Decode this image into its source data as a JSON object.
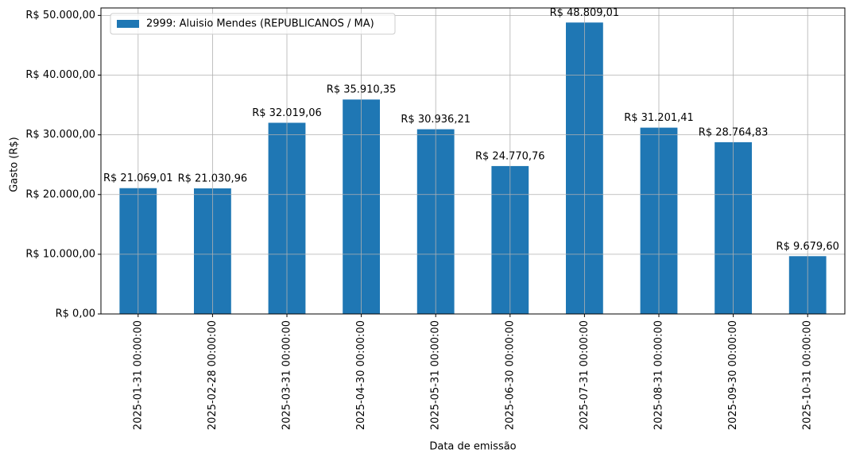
{
  "chart_data": {
    "type": "bar",
    "xlabel": "Data de emissão",
    "ylabel": "Gasto (R$)",
    "categories": [
      "2025-01-31 00:00:00",
      "2025-02-28 00:00:00",
      "2025-03-31 00:00:00",
      "2025-04-30 00:00:00",
      "2025-05-31 00:00:00",
      "2025-06-30 00:00:00",
      "2025-07-31 00:00:00",
      "2025-08-31 00:00:00",
      "2025-09-30 00:00:00",
      "2025-10-31 00:00:00"
    ],
    "series": [
      {
        "name": "2999: Aluisio Mendes (REPUBLICANOS / MA)",
        "color": "#1f77b4",
        "values": [
          21069.01,
          21030.96,
          32019.06,
          35910.35,
          30936.21,
          24770.76,
          48809.01,
          31201.41,
          28764.83,
          9679.6
        ],
        "value_labels": [
          "R$ 21.069,01",
          "R$ 21.030,96",
          "R$ 32.019,06",
          "R$ 35.910,35",
          "R$ 30.936,21",
          "R$ 24.770,76",
          "R$ 48.809,01",
          "R$ 31.201,41",
          "R$ 28.764,83",
          "R$ 9.679,60"
        ]
      }
    ],
    "ylim": [
      0,
      51249.46
    ],
    "yticks": [
      {
        "value": 0,
        "label": "R$ 0,00"
      },
      {
        "value": 10000,
        "label": "R$ 10.000,00"
      },
      {
        "value": 20000,
        "label": "R$ 20.000,00"
      },
      {
        "value": 30000,
        "label": "R$ 30.000,00"
      },
      {
        "value": 40000,
        "label": "R$ 40.000,00"
      },
      {
        "value": 50000,
        "label": "R$ 50.000,00"
      }
    ],
    "grid": true,
    "legend": "upper left"
  }
}
